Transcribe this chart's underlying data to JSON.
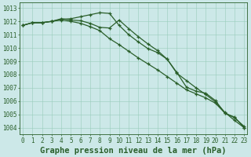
{
  "title": "Graphe pression niveau de la mer (hPa)",
  "background_color": "#cce8e8",
  "grid_color": "#99ccbb",
  "line_color": "#2a5f2a",
  "x_values": [
    0,
    1,
    2,
    3,
    4,
    5,
    6,
    7,
    8,
    9,
    10,
    11,
    12,
    13,
    14,
    15,
    16,
    17,
    18,
    19,
    20,
    21,
    22,
    23
  ],
  "line1": [
    1011.7,
    1011.9,
    1011.9,
    1012.0,
    1012.15,
    1012.2,
    1012.35,
    1012.5,
    1012.65,
    1012.6,
    1011.7,
    1011.0,
    1010.45,
    1009.95,
    1009.65,
    1009.15,
    1008.1,
    1007.55,
    1007.0,
    1006.5,
    1005.95,
    1005.15,
    1004.55,
    1004.0
  ],
  "line2": [
    1011.7,
    1011.9,
    1011.9,
    1012.0,
    1012.2,
    1012.1,
    1012.05,
    1011.85,
    1011.55,
    1011.5,
    1012.1,
    1011.45,
    1010.85,
    1010.3,
    1009.8,
    1009.15,
    1008.15,
    1007.05,
    1006.75,
    1006.6,
    1006.05,
    1005.1,
    1004.8,
    1004.0
  ],
  "line3": [
    1011.7,
    1011.9,
    1011.9,
    1012.0,
    1012.1,
    1012.0,
    1011.85,
    1011.6,
    1011.3,
    1010.7,
    1010.25,
    1009.75,
    1009.25,
    1008.8,
    1008.35,
    1007.85,
    1007.35,
    1006.85,
    1006.55,
    1006.25,
    1005.85,
    1005.1,
    1004.75,
    1004.1
  ],
  "ylim": [
    1003.5,
    1013.4
  ],
  "yticks": [
    1004,
    1005,
    1006,
    1007,
    1008,
    1009,
    1010,
    1011,
    1012,
    1013
  ],
  "xlim": [
    -0.3,
    23.3
  ],
  "title_fontsize": 7.5,
  "tick_fontsize": 5.5,
  "figsize": [
    3.2,
    2.0
  ],
  "dpi": 100
}
